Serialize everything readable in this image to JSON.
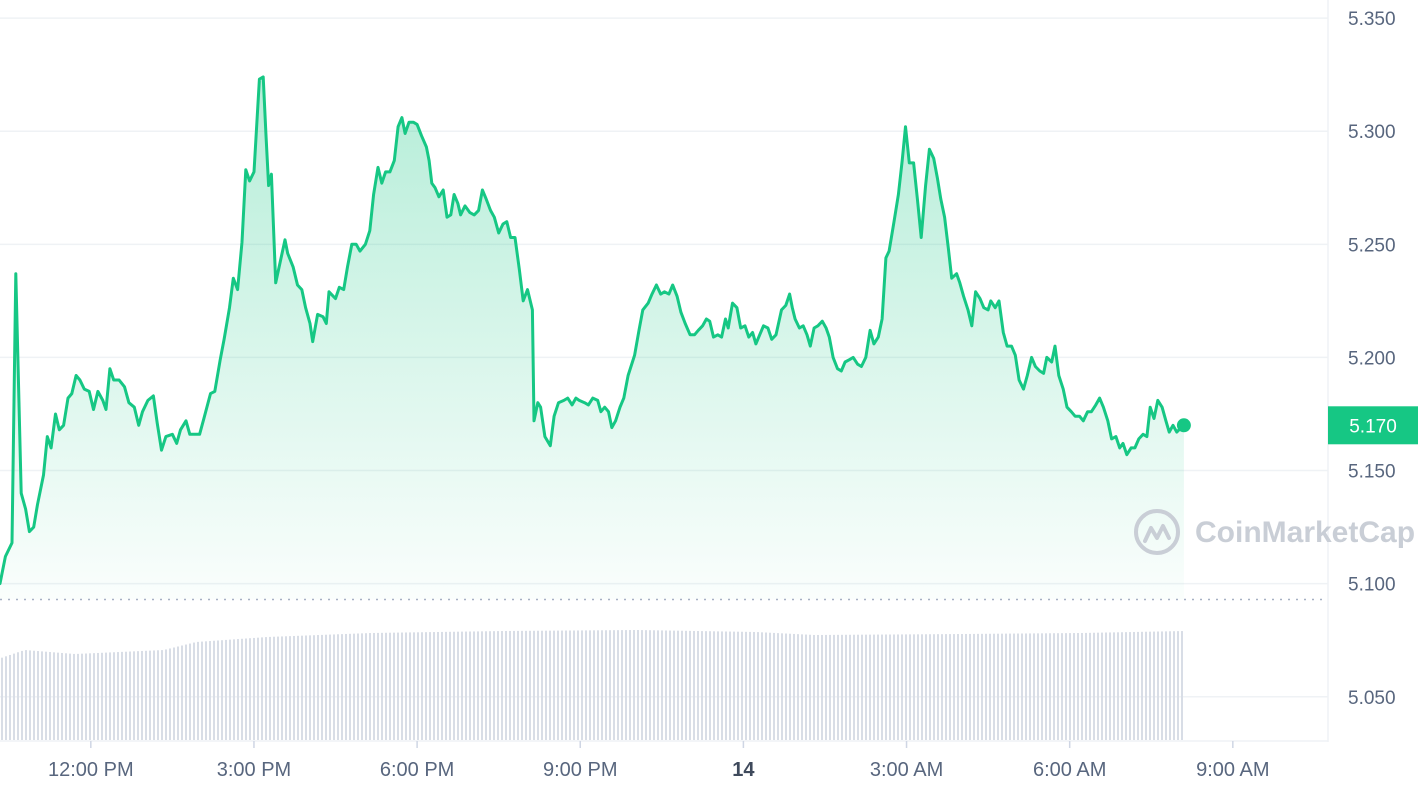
{
  "chart_data": {
    "type": "area",
    "y_ticks": [
      "5.350",
      "5.300",
      "5.250",
      "5.200",
      "5.150",
      "5.100",
      "5.050"
    ],
    "y_tick_values": [
      5.35,
      5.3,
      5.25,
      5.2,
      5.15,
      5.1,
      5.05
    ],
    "ylim": [
      5.03,
      5.358
    ],
    "x_ticks": [
      {
        "label": "12:00 PM",
        "x": 12,
        "bold": false
      },
      {
        "label": "3:00 PM",
        "x": 15,
        "bold": false
      },
      {
        "label": "6:00 PM",
        "x": 18,
        "bold": false
      },
      {
        "label": "9:00 PM",
        "x": 21,
        "bold": false
      },
      {
        "label": "14",
        "x": 24,
        "bold": true
      },
      {
        "label": "3:00 AM",
        "x": 27,
        "bold": false
      },
      {
        "label": "6:00 AM",
        "x": 30,
        "bold": false
      },
      {
        "label": "9:00 AM",
        "x": 33,
        "bold": false
      }
    ],
    "xlim": [
      10.33,
      34.75
    ],
    "current_price": "5.170",
    "current_value": 5.17,
    "open_reference": 5.093,
    "grid": true,
    "series": [
      {
        "values": [
          [
            10.33,
            5.1
          ],
          [
            10.43,
            5.112
          ],
          [
            10.55,
            5.118
          ],
          [
            10.62,
            5.237
          ],
          [
            10.72,
            5.14
          ],
          [
            10.8,
            5.133
          ],
          [
            10.87,
            5.123
          ],
          [
            10.95,
            5.125
          ],
          [
            11.02,
            5.135
          ],
          [
            11.13,
            5.148
          ],
          [
            11.2,
            5.165
          ],
          [
            11.27,
            5.16
          ],
          [
            11.35,
            5.175
          ],
          [
            11.42,
            5.168
          ],
          [
            11.5,
            5.17
          ],
          [
            11.58,
            5.182
          ],
          [
            11.65,
            5.184
          ],
          [
            11.73,
            5.192
          ],
          [
            11.8,
            5.19
          ],
          [
            11.88,
            5.186
          ],
          [
            11.97,
            5.185
          ],
          [
            12.05,
            5.177
          ],
          [
            12.13,
            5.185
          ],
          [
            12.22,
            5.181
          ],
          [
            12.28,
            5.177
          ],
          [
            12.35,
            5.195
          ],
          [
            12.42,
            5.19
          ],
          [
            12.52,
            5.19
          ],
          [
            12.62,
            5.187
          ],
          [
            12.7,
            5.18
          ],
          [
            12.8,
            5.178
          ],
          [
            12.88,
            5.17
          ],
          [
            12.95,
            5.176
          ],
          [
            13.05,
            5.181
          ],
          [
            13.15,
            5.183
          ],
          [
            13.22,
            5.171
          ],
          [
            13.3,
            5.159
          ],
          [
            13.38,
            5.165
          ],
          [
            13.5,
            5.166
          ],
          [
            13.58,
            5.162
          ],
          [
            13.65,
            5.168
          ],
          [
            13.75,
            5.172
          ],
          [
            13.82,
            5.166
          ],
          [
            13.92,
            5.166
          ],
          [
            14.0,
            5.166
          ],
          [
            14.08,
            5.173
          ],
          [
            14.2,
            5.184
          ],
          [
            14.28,
            5.185
          ],
          [
            14.38,
            5.199
          ],
          [
            14.45,
            5.208
          ],
          [
            14.55,
            5.222
          ],
          [
            14.62,
            5.235
          ],
          [
            14.7,
            5.23
          ],
          [
            14.78,
            5.251
          ],
          [
            14.85,
            5.283
          ],
          [
            14.92,
            5.278
          ],
          [
            15.0,
            5.282
          ],
          [
            15.1,
            5.323
          ],
          [
            15.17,
            5.324
          ],
          [
            15.22,
            5.299
          ],
          [
            15.27,
            5.276
          ],
          [
            15.32,
            5.281
          ],
          [
            15.4,
            5.233
          ],
          [
            15.48,
            5.242
          ],
          [
            15.57,
            5.252
          ],
          [
            15.62,
            5.246
          ],
          [
            15.72,
            5.24
          ],
          [
            15.8,
            5.232
          ],
          [
            15.88,
            5.23
          ],
          [
            15.95,
            5.222
          ],
          [
            16.03,
            5.215
          ],
          [
            16.08,
            5.207
          ],
          [
            16.17,
            5.219
          ],
          [
            16.27,
            5.218
          ],
          [
            16.33,
            5.215
          ],
          [
            16.38,
            5.229
          ],
          [
            16.5,
            5.226
          ],
          [
            16.57,
            5.231
          ],
          [
            16.65,
            5.23
          ],
          [
            16.72,
            5.24
          ],
          [
            16.8,
            5.25
          ],
          [
            16.88,
            5.25
          ],
          [
            16.95,
            5.247
          ],
          [
            17.05,
            5.25
          ],
          [
            17.13,
            5.256
          ],
          [
            17.2,
            5.272
          ],
          [
            17.28,
            5.284
          ],
          [
            17.35,
            5.277
          ],
          [
            17.42,
            5.282
          ],
          [
            17.5,
            5.282
          ],
          [
            17.58,
            5.287
          ],
          [
            17.65,
            5.302
          ],
          [
            17.72,
            5.306
          ],
          [
            17.78,
            5.299
          ],
          [
            17.85,
            5.304
          ],
          [
            17.93,
            5.304
          ],
          [
            18.0,
            5.303
          ],
          [
            18.08,
            5.298
          ],
          [
            18.17,
            5.293
          ],
          [
            18.22,
            5.287
          ],
          [
            18.27,
            5.277
          ],
          [
            18.33,
            5.275
          ],
          [
            18.4,
            5.271
          ],
          [
            18.48,
            5.274
          ],
          [
            18.55,
            5.262
          ],
          [
            18.62,
            5.263
          ],
          [
            18.68,
            5.272
          ],
          [
            18.75,
            5.268
          ],
          [
            18.8,
            5.263
          ],
          [
            18.88,
            5.267
          ],
          [
            18.97,
            5.264
          ],
          [
            19.05,
            5.263
          ],
          [
            19.13,
            5.265
          ],
          [
            19.2,
            5.274
          ],
          [
            19.27,
            5.27
          ],
          [
            19.35,
            5.265
          ],
          [
            19.42,
            5.262
          ],
          [
            19.5,
            5.255
          ],
          [
            19.58,
            5.259
          ],
          [
            19.65,
            5.26
          ],
          [
            19.72,
            5.253
          ],
          [
            19.8,
            5.253
          ],
          [
            19.88,
            5.239
          ],
          [
            19.95,
            5.225
          ],
          [
            20.03,
            5.23
          ],
          [
            20.12,
            5.221
          ],
          [
            20.15,
            5.172
          ],
          [
            20.22,
            5.18
          ],
          [
            20.27,
            5.178
          ],
          [
            20.35,
            5.165
          ],
          [
            20.45,
            5.161
          ],
          [
            20.52,
            5.174
          ],
          [
            20.6,
            5.18
          ],
          [
            20.7,
            5.181
          ],
          [
            20.77,
            5.182
          ],
          [
            20.85,
            5.179
          ],
          [
            20.92,
            5.182
          ],
          [
            20.98,
            5.181
          ],
          [
            21.08,
            5.18
          ],
          [
            21.15,
            5.179
          ],
          [
            21.23,
            5.182
          ],
          [
            21.32,
            5.181
          ],
          [
            21.38,
            5.176
          ],
          [
            21.45,
            5.178
          ],
          [
            21.52,
            5.176
          ],
          [
            21.58,
            5.169
          ],
          [
            21.65,
            5.172
          ],
          [
            21.73,
            5.178
          ],
          [
            21.8,
            5.182
          ],
          [
            21.88,
            5.192
          ],
          [
            22.0,
            5.201
          ],
          [
            22.08,
            5.212
          ],
          [
            22.15,
            5.221
          ],
          [
            22.25,
            5.224
          ],
          [
            22.32,
            5.228
          ],
          [
            22.4,
            5.232
          ],
          [
            22.48,
            5.228
          ],
          [
            22.55,
            5.229
          ],
          [
            22.63,
            5.228
          ],
          [
            22.7,
            5.232
          ],
          [
            22.78,
            5.227
          ],
          [
            22.85,
            5.22
          ],
          [
            22.93,
            5.215
          ],
          [
            23.02,
            5.21
          ],
          [
            23.1,
            5.21
          ],
          [
            23.17,
            5.212
          ],
          [
            23.25,
            5.214
          ],
          [
            23.32,
            5.217
          ],
          [
            23.38,
            5.216
          ],
          [
            23.45,
            5.209
          ],
          [
            23.53,
            5.21
          ],
          [
            23.6,
            5.209
          ],
          [
            23.67,
            5.217
          ],
          [
            23.72,
            5.213
          ],
          [
            23.8,
            5.224
          ],
          [
            23.88,
            5.222
          ],
          [
            23.95,
            5.213
          ],
          [
            24.03,
            5.214
          ],
          [
            24.1,
            5.209
          ],
          [
            24.17,
            5.211
          ],
          [
            24.23,
            5.206
          ],
          [
            24.3,
            5.21
          ],
          [
            24.37,
            5.214
          ],
          [
            24.45,
            5.213
          ],
          [
            24.52,
            5.208
          ],
          [
            24.6,
            5.21
          ],
          [
            24.7,
            5.221
          ],
          [
            24.78,
            5.223
          ],
          [
            24.85,
            5.228
          ],
          [
            24.9,
            5.222
          ],
          [
            24.95,
            5.217
          ],
          [
            25.03,
            5.213
          ],
          [
            25.1,
            5.214
          ],
          [
            25.17,
            5.21
          ],
          [
            25.23,
            5.205
          ],
          [
            25.3,
            5.213
          ],
          [
            25.37,
            5.214
          ],
          [
            25.45,
            5.216
          ],
          [
            25.52,
            5.213
          ],
          [
            25.58,
            5.209
          ],
          [
            25.65,
            5.2
          ],
          [
            25.73,
            5.195
          ],
          [
            25.8,
            5.194
          ],
          [
            25.87,
            5.198
          ],
          [
            25.95,
            5.199
          ],
          [
            26.02,
            5.2
          ],
          [
            26.1,
            5.197
          ],
          [
            26.17,
            5.196
          ],
          [
            26.25,
            5.2
          ],
          [
            26.33,
            5.212
          ],
          [
            26.4,
            5.206
          ],
          [
            26.48,
            5.209
          ],
          [
            26.55,
            5.217
          ],
          [
            26.62,
            5.244
          ],
          [
            26.68,
            5.247
          ],
          [
            26.77,
            5.26
          ],
          [
            26.85,
            5.272
          ],
          [
            26.92,
            5.287
          ],
          [
            26.98,
            5.302
          ],
          [
            27.05,
            5.286
          ],
          [
            27.13,
            5.286
          ],
          [
            27.2,
            5.27
          ],
          [
            27.27,
            5.253
          ],
          [
            27.35,
            5.276
          ],
          [
            27.42,
            5.292
          ],
          [
            27.5,
            5.288
          ],
          [
            27.57,
            5.279
          ],
          [
            27.63,
            5.27
          ],
          [
            27.7,
            5.262
          ],
          [
            27.77,
            5.248
          ],
          [
            27.83,
            5.235
          ],
          [
            27.92,
            5.237
          ],
          [
            27.98,
            5.233
          ],
          [
            28.05,
            5.227
          ],
          [
            28.13,
            5.221
          ],
          [
            28.2,
            5.214
          ],
          [
            28.27,
            5.229
          ],
          [
            28.35,
            5.226
          ],
          [
            28.42,
            5.222
          ],
          [
            28.5,
            5.221
          ],
          [
            28.55,
            5.225
          ],
          [
            28.63,
            5.222
          ],
          [
            28.7,
            5.225
          ],
          [
            28.78,
            5.211
          ],
          [
            28.85,
            5.205
          ],
          [
            28.93,
            5.205
          ],
          [
            29.0,
            5.201
          ],
          [
            29.07,
            5.19
          ],
          [
            29.15,
            5.186
          ],
          [
            29.22,
            5.192
          ],
          [
            29.3,
            5.2
          ],
          [
            29.37,
            5.196
          ],
          [
            29.45,
            5.194
          ],
          [
            29.52,
            5.193
          ],
          [
            29.58,
            5.2
          ],
          [
            29.67,
            5.198
          ],
          [
            29.73,
            5.205
          ],
          [
            29.8,
            5.192
          ],
          [
            29.88,
            5.186
          ],
          [
            29.95,
            5.178
          ],
          [
            30.03,
            5.176
          ],
          [
            30.1,
            5.174
          ],
          [
            30.18,
            5.174
          ],
          [
            30.25,
            5.172
          ],
          [
            30.33,
            5.176
          ],
          [
            30.4,
            5.176
          ],
          [
            30.48,
            5.179
          ],
          [
            30.55,
            5.182
          ],
          [
            30.62,
            5.178
          ],
          [
            30.7,
            5.172
          ],
          [
            30.77,
            5.164
          ],
          [
            30.85,
            5.165
          ],
          [
            30.92,
            5.16
          ],
          [
            30.98,
            5.162
          ],
          [
            31.05,
            5.157
          ],
          [
            31.13,
            5.16
          ],
          [
            31.2,
            5.16
          ],
          [
            31.27,
            5.164
          ],
          [
            31.35,
            5.166
          ],
          [
            31.42,
            5.165
          ],
          [
            31.48,
            5.178
          ],
          [
            31.55,
            5.173
          ],
          [
            31.62,
            5.181
          ],
          [
            31.7,
            5.178
          ],
          [
            31.77,
            5.172
          ],
          [
            31.83,
            5.167
          ],
          [
            31.9,
            5.17
          ],
          [
            31.97,
            5.167
          ],
          [
            32.05,
            5.169
          ],
          [
            32.1,
            5.17
          ]
        ]
      }
    ]
  },
  "watermark": {
    "text": "CoinMarketCap"
  },
  "colors": {
    "line": "#16c784",
    "fill_top": "#16c784",
    "badge": "#16c784",
    "grid": "#eff2f5",
    "volume": "#cfd6e4",
    "axis_text": "#58667e"
  }
}
